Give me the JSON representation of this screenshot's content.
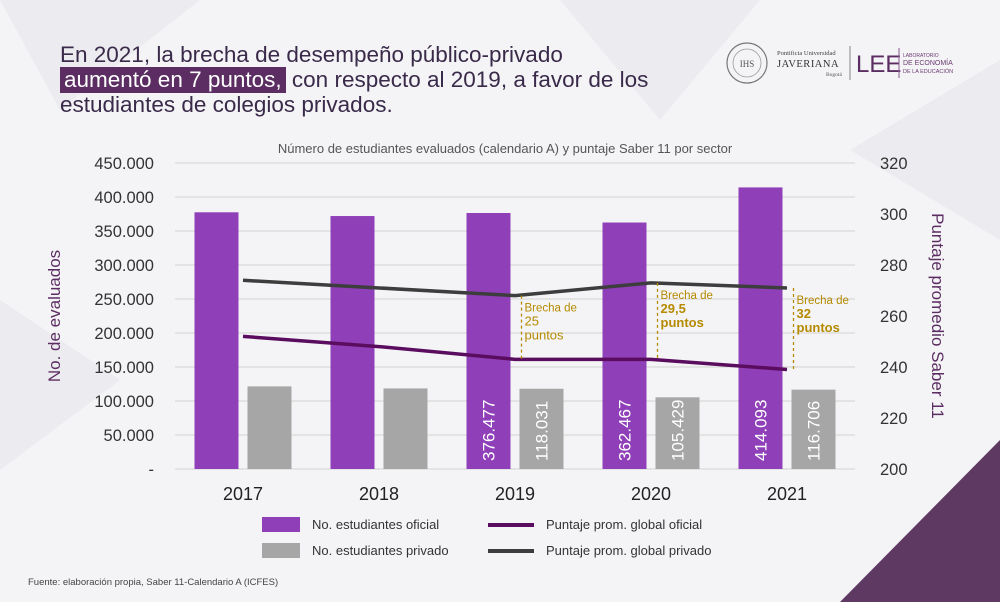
{
  "headline": {
    "part1": "En 2021, la brecha de desempeño público-privado",
    "highlight": "aumentó en 7 puntos,",
    "part2": " con respecto al 2019, a favor de los estudiantes de colegios privados."
  },
  "logo": {
    "university_line1": "Pontificia Universidad",
    "university_line2": "JAVERIANA",
    "university_line3": "Bogotá",
    "lab_abbr": "LEE",
    "lab_line1": "LABORATORIO",
    "lab_line2": "DE ECONOMÍA",
    "lab_line3": "DE LA EDUCACIÓN",
    "seal_text": "IHS"
  },
  "chart_data": {
    "type": "bar",
    "title": "Número de estudiantes evaluados (calendario A) y puntaje Saber 11 por sector",
    "categories": [
      "2017",
      "2018",
      "2019",
      "2020",
      "2021"
    ],
    "ylabel": "No. de evaluados",
    "y2label": "Puntaje promedio Saber 11",
    "ylim": [
      0,
      450000
    ],
    "y2lim": [
      200,
      320
    ],
    "y_ticks": [
      "-",
      "50.000",
      "100.000",
      "150.000",
      "200.000",
      "250.000",
      "300.000",
      "350.000",
      "400.000",
      "450.000"
    ],
    "y2_ticks": [
      "200",
      "220",
      "240",
      "260",
      "280",
      "300",
      "320"
    ],
    "series": [
      {
        "name": "No. estudiantes oficial",
        "kind": "bar",
        "axis": "left",
        "color": "#8f3fb8",
        "values": [
          377500,
          372000,
          376477,
          362467,
          414093
        ],
        "labels": [
          "",
          "",
          "376.477",
          "362.467",
          "414.093"
        ]
      },
      {
        "name": "No. estudiantes privado",
        "kind": "bar",
        "axis": "left",
        "color": "#a6a6a6",
        "values": [
          121500,
          118500,
          118031,
          105429,
          116706
        ],
        "labels": [
          "",
          "",
          "118.031",
          "105.429",
          "116.706"
        ]
      },
      {
        "name": "Puntaje prom. global oficial",
        "kind": "line",
        "axis": "right",
        "color": "#5a0d5e",
        "values": [
          252,
          248,
          243,
          243,
          239
        ]
      },
      {
        "name": "Puntaje prom. global privado",
        "kind": "line",
        "axis": "right",
        "color": "#3d3d3d",
        "values": [
          274,
          271,
          268,
          273,
          271
        ]
      }
    ],
    "annotations": [
      {
        "category": "2019",
        "lines": [
          "Brecha de",
          "25",
          "puntos"
        ],
        "bold": false
      },
      {
        "category": "2020",
        "lines": [
          "Brecha de",
          "29,5",
          "puntos"
        ],
        "bold": true
      },
      {
        "category": "2021",
        "lines": [
          "Brecha de",
          "32",
          "puntos"
        ],
        "bold": true
      }
    ],
    "annotation_color": "#b58a00"
  },
  "source": "Fuente: elaboración propia, Saber 11-Calendario A (ICFES)"
}
